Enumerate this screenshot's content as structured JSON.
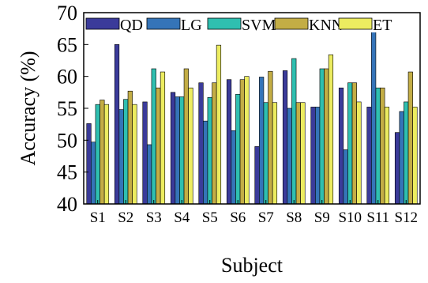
{
  "chart_data": {
    "type": "bar",
    "title": "",
    "xlabel": "Subject",
    "ylabel": "Accuracy (%)",
    "ylim": [
      40,
      70
    ],
    "yticks": [
      "40",
      "45",
      "50",
      "55",
      "60",
      "65",
      "70"
    ],
    "grid": false,
    "legend_position": "top, inside plot",
    "categories": [
      "S1",
      "S2",
      "S3",
      "S4",
      "S5",
      "S6",
      "S7",
      "S8",
      "S9",
      "S10",
      "S11",
      "S12"
    ],
    "series": [
      {
        "name": "QD",
        "color": "#3b3b9a",
        "values": [
          52.6,
          65.0,
          56.0,
          57.5,
          59.0,
          59.5,
          49.0,
          60.9,
          55.2,
          58.2,
          55.2,
          51.2
        ]
      },
      {
        "name": "LG",
        "color": "#3574b8",
        "values": [
          49.7,
          54.8,
          49.3,
          56.8,
          53.0,
          51.5,
          59.9,
          55.0,
          55.2,
          48.5,
          67.5,
          54.5
        ]
      },
      {
        "name": "SVM",
        "color": "#2fbfb0",
        "values": [
          55.6,
          56.4,
          61.2,
          56.8,
          56.7,
          57.2,
          55.9,
          62.8,
          61.2,
          59.0,
          58.2,
          56.0
        ]
      },
      {
        "name": "KNN",
        "color": "#c3ad45",
        "values": [
          56.3,
          57.7,
          58.2,
          61.2,
          59.0,
          59.5,
          60.8,
          55.9,
          61.2,
          59.0,
          58.2,
          60.7
        ]
      },
      {
        "name": "ET",
        "color": "#ecec60",
        "values": [
          55.6,
          55.6,
          60.7,
          58.2,
          64.9,
          60.0,
          55.9,
          55.9,
          63.4,
          56.0,
          55.2,
          55.2
        ]
      }
    ]
  }
}
